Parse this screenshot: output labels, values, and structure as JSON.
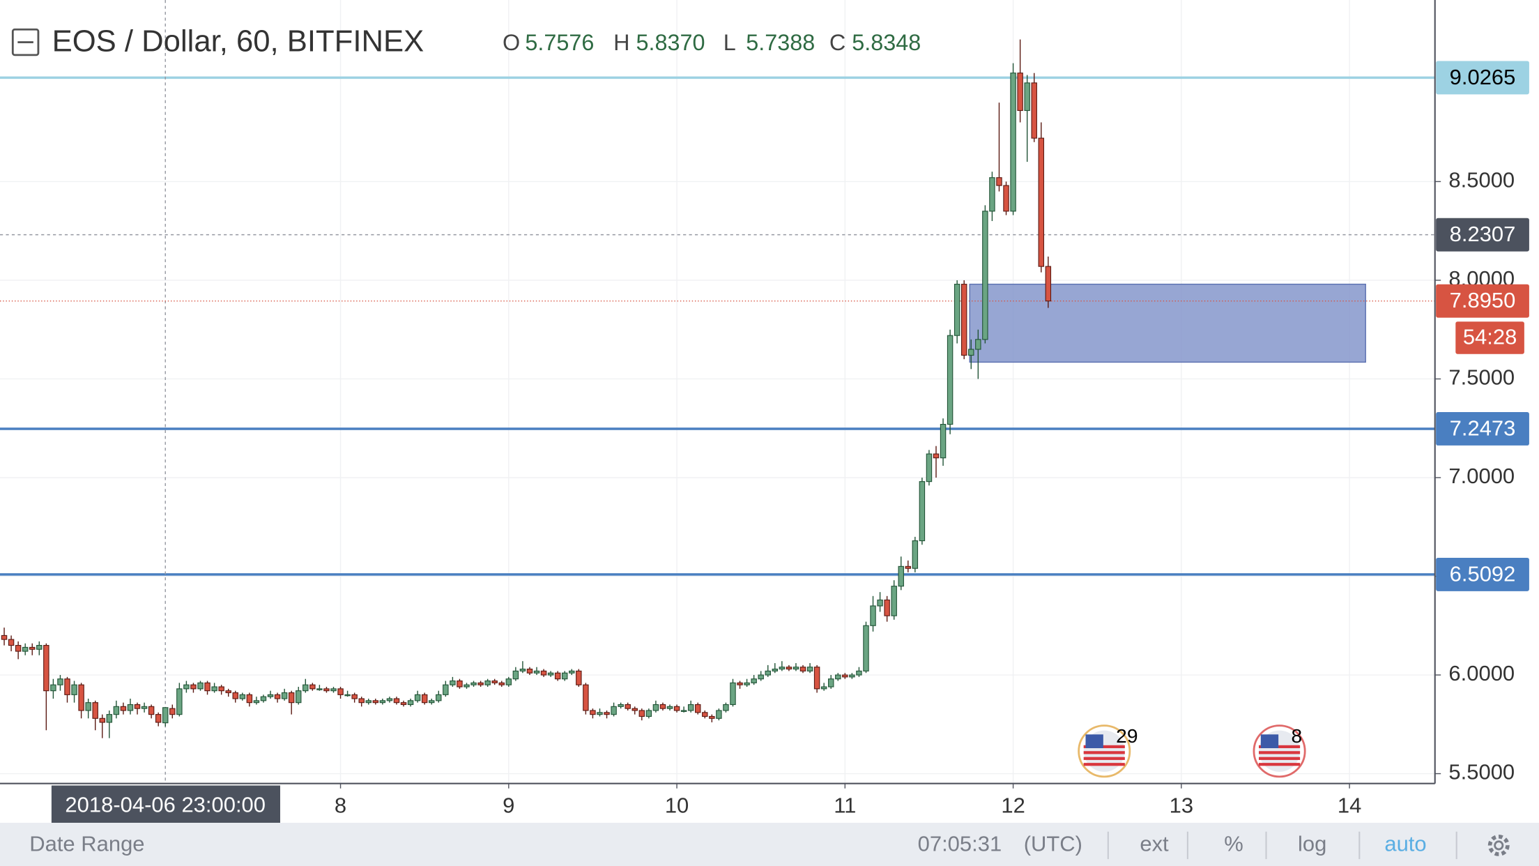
{
  "chart_data": {
    "type": "candlestick",
    "title": "EOS / Dollar, 60, BITFINEX",
    "header_values": [
      {
        "name": "O",
        "label": "5.7576"
      },
      {
        "name": "H",
        "label": "5.8370"
      },
      {
        "name": "L",
        "label": "5.7388"
      },
      {
        "name": "C",
        "label": "5.8348"
      }
    ],
    "up_color": "#6ba583",
    "down_color": "#d75442",
    "candles": [
      [
        6.2,
        6.24,
        6.15,
        6.18
      ],
      [
        6.18,
        6.2,
        6.12,
        6.15
      ],
      [
        6.15,
        6.17,
        6.08,
        6.12
      ],
      [
        6.12,
        6.16,
        6.1,
        6.14
      ],
      [
        6.14,
        6.16,
        6.1,
        6.13
      ],
      [
        6.13,
        6.17,
        6.1,
        6.15
      ],
      [
        6.15,
        6.16,
        5.72,
        5.92
      ],
      [
        5.92,
        5.98,
        5.88,
        5.95
      ],
      [
        5.95,
        6.0,
        5.92,
        5.98
      ],
      [
        5.98,
        5.99,
        5.86,
        5.9
      ],
      [
        5.9,
        5.97,
        5.86,
        5.95
      ],
      [
        5.95,
        5.96,
        5.78,
        5.82
      ],
      [
        5.82,
        5.88,
        5.78,
        5.86
      ],
      [
        5.86,
        5.87,
        5.72,
        5.78
      ],
      [
        5.78,
        5.8,
        5.68,
        5.76
      ],
      [
        5.76,
        5.82,
        5.68,
        5.8
      ],
      [
        5.8,
        5.87,
        5.78,
        5.84
      ],
      [
        5.84,
        5.86,
        5.8,
        5.82
      ],
      [
        5.82,
        5.88,
        5.8,
        5.85
      ],
      [
        5.85,
        5.86,
        5.8,
        5.83
      ],
      [
        5.83,
        5.86,
        5.81,
        5.84
      ],
      [
        5.84,
        5.85,
        5.78,
        5.8
      ],
      [
        5.8,
        5.81,
        5.74,
        5.76
      ],
      [
        5.7576,
        5.837,
        5.7388,
        5.8348
      ],
      [
        5.83,
        5.85,
        5.78,
        5.8
      ],
      [
        5.8,
        5.96,
        5.79,
        5.93
      ],
      [
        5.93,
        5.97,
        5.91,
        5.95
      ],
      [
        5.95,
        5.96,
        5.91,
        5.93
      ],
      [
        5.93,
        5.97,
        5.92,
        5.96
      ],
      [
        5.96,
        5.97,
        5.9,
        5.92
      ],
      [
        5.92,
        5.96,
        5.91,
        5.94
      ],
      [
        5.94,
        5.95,
        5.9,
        5.92
      ],
      [
        5.92,
        5.93,
        5.89,
        5.91
      ],
      [
        5.91,
        5.92,
        5.86,
        5.88
      ],
      [
        5.88,
        5.91,
        5.87,
        5.9
      ],
      [
        5.9,
        5.91,
        5.84,
        5.86
      ],
      [
        5.86,
        5.89,
        5.85,
        5.87
      ],
      [
        5.87,
        5.9,
        5.86,
        5.89
      ],
      [
        5.89,
        5.92,
        5.88,
        5.9
      ],
      [
        5.9,
        5.91,
        5.86,
        5.88
      ],
      [
        5.88,
        5.93,
        5.87,
        5.91
      ],
      [
        5.91,
        5.92,
        5.8,
        5.86
      ],
      [
        5.86,
        5.94,
        5.85,
        5.92
      ],
      [
        5.92,
        5.98,
        5.91,
        5.95
      ],
      [
        5.95,
        5.96,
        5.92,
        5.93
      ],
      [
        5.93,
        5.95,
        5.92,
        5.93
      ],
      [
        5.93,
        5.94,
        5.91,
        5.92
      ],
      [
        5.92,
        5.94,
        5.91,
        5.93
      ],
      [
        5.93,
        5.94,
        5.88,
        5.9
      ],
      [
        5.9,
        5.92,
        5.89,
        5.9
      ],
      [
        5.9,
        5.91,
        5.86,
        5.88
      ],
      [
        5.88,
        5.89,
        5.84,
        5.86
      ],
      [
        5.86,
        5.88,
        5.85,
        5.87
      ],
      [
        5.87,
        5.88,
        5.85,
        5.86
      ],
      [
        5.86,
        5.88,
        5.85,
        5.87
      ],
      [
        5.87,
        5.89,
        5.86,
        5.88
      ],
      [
        5.88,
        5.89,
        5.85,
        5.86
      ],
      [
        5.86,
        5.87,
        5.84,
        5.85
      ],
      [
        5.85,
        5.88,
        5.84,
        5.87
      ],
      [
        5.87,
        5.92,
        5.86,
        5.9
      ],
      [
        5.9,
        5.91,
        5.85,
        5.86
      ],
      [
        5.86,
        5.88,
        5.85,
        5.87
      ],
      [
        5.87,
        5.92,
        5.86,
        5.9
      ],
      [
        5.9,
        5.97,
        5.89,
        5.95
      ],
      [
        5.95,
        5.99,
        5.94,
        5.97
      ],
      [
        5.97,
        5.98,
        5.93,
        5.94
      ],
      [
        5.94,
        5.96,
        5.93,
        5.95
      ],
      [
        5.95,
        5.97,
        5.94,
        5.96
      ],
      [
        5.96,
        5.97,
        5.94,
        5.95
      ],
      [
        5.95,
        5.98,
        5.94,
        5.97
      ],
      [
        5.97,
        5.98,
        5.95,
        5.96
      ],
      [
        5.96,
        5.97,
        5.94,
        5.95
      ],
      [
        5.95,
        5.99,
        5.94,
        5.98
      ],
      [
        5.98,
        6.04,
        5.97,
        6.02
      ],
      [
        6.02,
        6.07,
        6.01,
        6.03
      ],
      [
        6.03,
        6.04,
        6.0,
        6.01
      ],
      [
        6.01,
        6.04,
        6.0,
        6.02
      ],
      [
        6.02,
        6.03,
        5.99,
        6.0
      ],
      [
        6.0,
        6.02,
        5.99,
        6.01
      ],
      [
        6.01,
        6.02,
        5.97,
        5.98
      ],
      [
        5.98,
        6.02,
        5.97,
        6.01
      ],
      [
        6.01,
        6.03,
        6.0,
        6.02
      ],
      [
        6.02,
        6.03,
        5.94,
        5.95
      ],
      [
        5.95,
        5.96,
        5.8,
        5.82
      ],
      [
        5.82,
        5.83,
        5.78,
        5.8
      ],
      [
        5.8,
        5.83,
        5.79,
        5.81
      ],
      [
        5.81,
        5.82,
        5.78,
        5.8
      ],
      [
        5.8,
        5.86,
        5.79,
        5.84
      ],
      [
        5.84,
        5.86,
        5.83,
        5.85
      ],
      [
        5.85,
        5.86,
        5.82,
        5.83
      ],
      [
        5.83,
        5.84,
        5.8,
        5.82
      ],
      [
        5.82,
        5.83,
        5.77,
        5.79
      ],
      [
        5.79,
        5.83,
        5.78,
        5.82
      ],
      [
        5.82,
        5.87,
        5.81,
        5.85
      ],
      [
        5.85,
        5.86,
        5.82,
        5.83
      ],
      [
        5.83,
        5.85,
        5.82,
        5.84
      ],
      [
        5.84,
        5.85,
        5.81,
        5.82
      ],
      [
        5.82,
        5.84,
        5.81,
        5.82
      ],
      [
        5.82,
        5.87,
        5.81,
        5.85
      ],
      [
        5.85,
        5.86,
        5.8,
        5.81
      ],
      [
        5.81,
        5.82,
        5.78,
        5.79
      ],
      [
        5.79,
        5.8,
        5.76,
        5.78
      ],
      [
        5.78,
        5.83,
        5.77,
        5.82
      ],
      [
        5.82,
        5.86,
        5.81,
        5.85
      ],
      [
        5.85,
        5.98,
        5.84,
        5.96
      ],
      [
        5.96,
        5.97,
        5.93,
        5.95
      ],
      [
        5.95,
        5.98,
        5.94,
        5.96
      ],
      [
        5.96,
        6.0,
        5.95,
        5.98
      ],
      [
        5.98,
        6.02,
        5.97,
        6.0
      ],
      [
        6.0,
        6.05,
        5.99,
        6.02
      ],
      [
        6.02,
        6.06,
        6.01,
        6.03
      ],
      [
        6.03,
        6.07,
        6.02,
        6.04
      ],
      [
        6.04,
        6.05,
        6.02,
        6.03
      ],
      [
        6.03,
        6.06,
        6.02,
        6.04
      ],
      [
        6.04,
        6.05,
        6.01,
        6.02
      ],
      [
        6.02,
        6.06,
        6.01,
        6.04
      ],
      [
        6.04,
        6.05,
        5.91,
        5.93
      ],
      [
        5.93,
        5.96,
        5.92,
        5.94
      ],
      [
        5.94,
        6.0,
        5.93,
        5.98
      ],
      [
        5.98,
        6.01,
        5.97,
        6.0
      ],
      [
        6.0,
        6.01,
        5.98,
        5.99
      ],
      [
        5.99,
        6.01,
        5.98,
        6.0
      ],
      [
        6.0,
        6.04,
        5.99,
        6.02
      ],
      [
        6.02,
        6.27,
        6.01,
        6.25
      ],
      [
        6.25,
        6.4,
        6.22,
        6.35
      ],
      [
        6.35,
        6.42,
        6.32,
        6.38
      ],
      [
        6.38,
        6.4,
        6.27,
        6.3
      ],
      [
        6.3,
        6.48,
        6.28,
        6.45
      ],
      [
        6.45,
        6.6,
        6.43,
        6.55
      ],
      [
        6.55,
        6.58,
        6.52,
        6.54
      ],
      [
        6.54,
        6.7,
        6.52,
        6.68
      ],
      [
        6.68,
        7.0,
        6.66,
        6.98
      ],
      [
        6.98,
        7.14,
        6.96,
        7.12
      ],
      [
        7.12,
        7.16,
        7.0,
        7.1
      ],
      [
        7.1,
        7.3,
        7.06,
        7.27
      ],
      [
        7.27,
        7.75,
        7.22,
        7.72
      ],
      [
        7.72,
        8.0,
        7.68,
        7.98
      ],
      [
        7.98,
        8.0,
        7.6,
        7.62
      ],
      [
        7.62,
        7.7,
        7.55,
        7.65
      ],
      [
        7.65,
        7.75,
        7.5,
        7.7
      ],
      [
        7.7,
        8.38,
        7.68,
        8.35
      ],
      [
        8.35,
        8.55,
        8.3,
        8.52
      ],
      [
        8.52,
        8.9,
        8.45,
        8.48
      ],
      [
        8.48,
        8.5,
        8.33,
        8.35
      ],
      [
        8.35,
        9.1,
        8.33,
        9.05
      ],
      [
        9.05,
        9.22,
        8.8,
        8.86
      ],
      [
        8.86,
        9.04,
        8.6,
        9.0
      ],
      [
        9.0,
        9.05,
        8.7,
        8.72
      ],
      [
        8.72,
        8.8,
        8.04,
        8.07
      ],
      [
        8.07,
        8.12,
        7.86,
        7.895
      ]
    ],
    "xlim": [
      -0.6,
      204.2
    ],
    "xticks": [
      {
        "value": 48,
        "label": "8"
      },
      {
        "value": 72,
        "label": "9"
      },
      {
        "value": 96,
        "label": "10"
      },
      {
        "value": 120,
        "label": "11"
      },
      {
        "value": 144,
        "label": "12"
      },
      {
        "value": 168,
        "label": "13"
      },
      {
        "value": 192,
        "label": "14"
      }
    ],
    "ylim": [
      5.45,
      9.42
    ],
    "yticks": [
      {
        "value": 5.5,
        "label": "5.5000"
      },
      {
        "value": 6,
        "label": "6.0000"
      },
      {
        "value": 6.5,
        "label": "6.5000"
      },
      {
        "value": 7,
        "label": "7.0000"
      },
      {
        "value": 7.5,
        "label": "7.5000"
      },
      {
        "value": 8,
        "label": "8.0000"
      },
      {
        "value": 8.5,
        "label": "8.5000"
      }
    ],
    "grid": true,
    "levels": [
      {
        "value": 9.0265,
        "color": "#9dd2e3",
        "text_color": "#000000"
      },
      {
        "value": 7.2473,
        "color": "#4a7fc1",
        "text_color": "#ffffff"
      },
      {
        "value": 6.5092,
        "color": "#4a7fc1",
        "text_color": "#ffffff"
      }
    ],
    "zone": {
      "x": [
        137.8,
        194.3
      ],
      "y": [
        7.585,
        7.98
      ],
      "color": "#8596cb"
    },
    "last_price": {
      "value": 7.895,
      "label": "7.8950"
    },
    "countdown": "54:28",
    "crosshair": {
      "x": {
        "value": 23,
        "label": "2018-04-06 23:00:00"
      },
      "y": 8.2307
    },
    "events": [
      {
        "x": 157,
        "count": 29,
        "color": "#e8b96a"
      },
      {
        "x": 182,
        "count": 8,
        "color": "#e06a6a"
      }
    ]
  },
  "toolbar": {
    "date_range": "Date Range",
    "time": "07:05:31",
    "timezone": "(UTC)",
    "buttons": [
      "ext",
      "%",
      "log",
      "auto"
    ]
  }
}
